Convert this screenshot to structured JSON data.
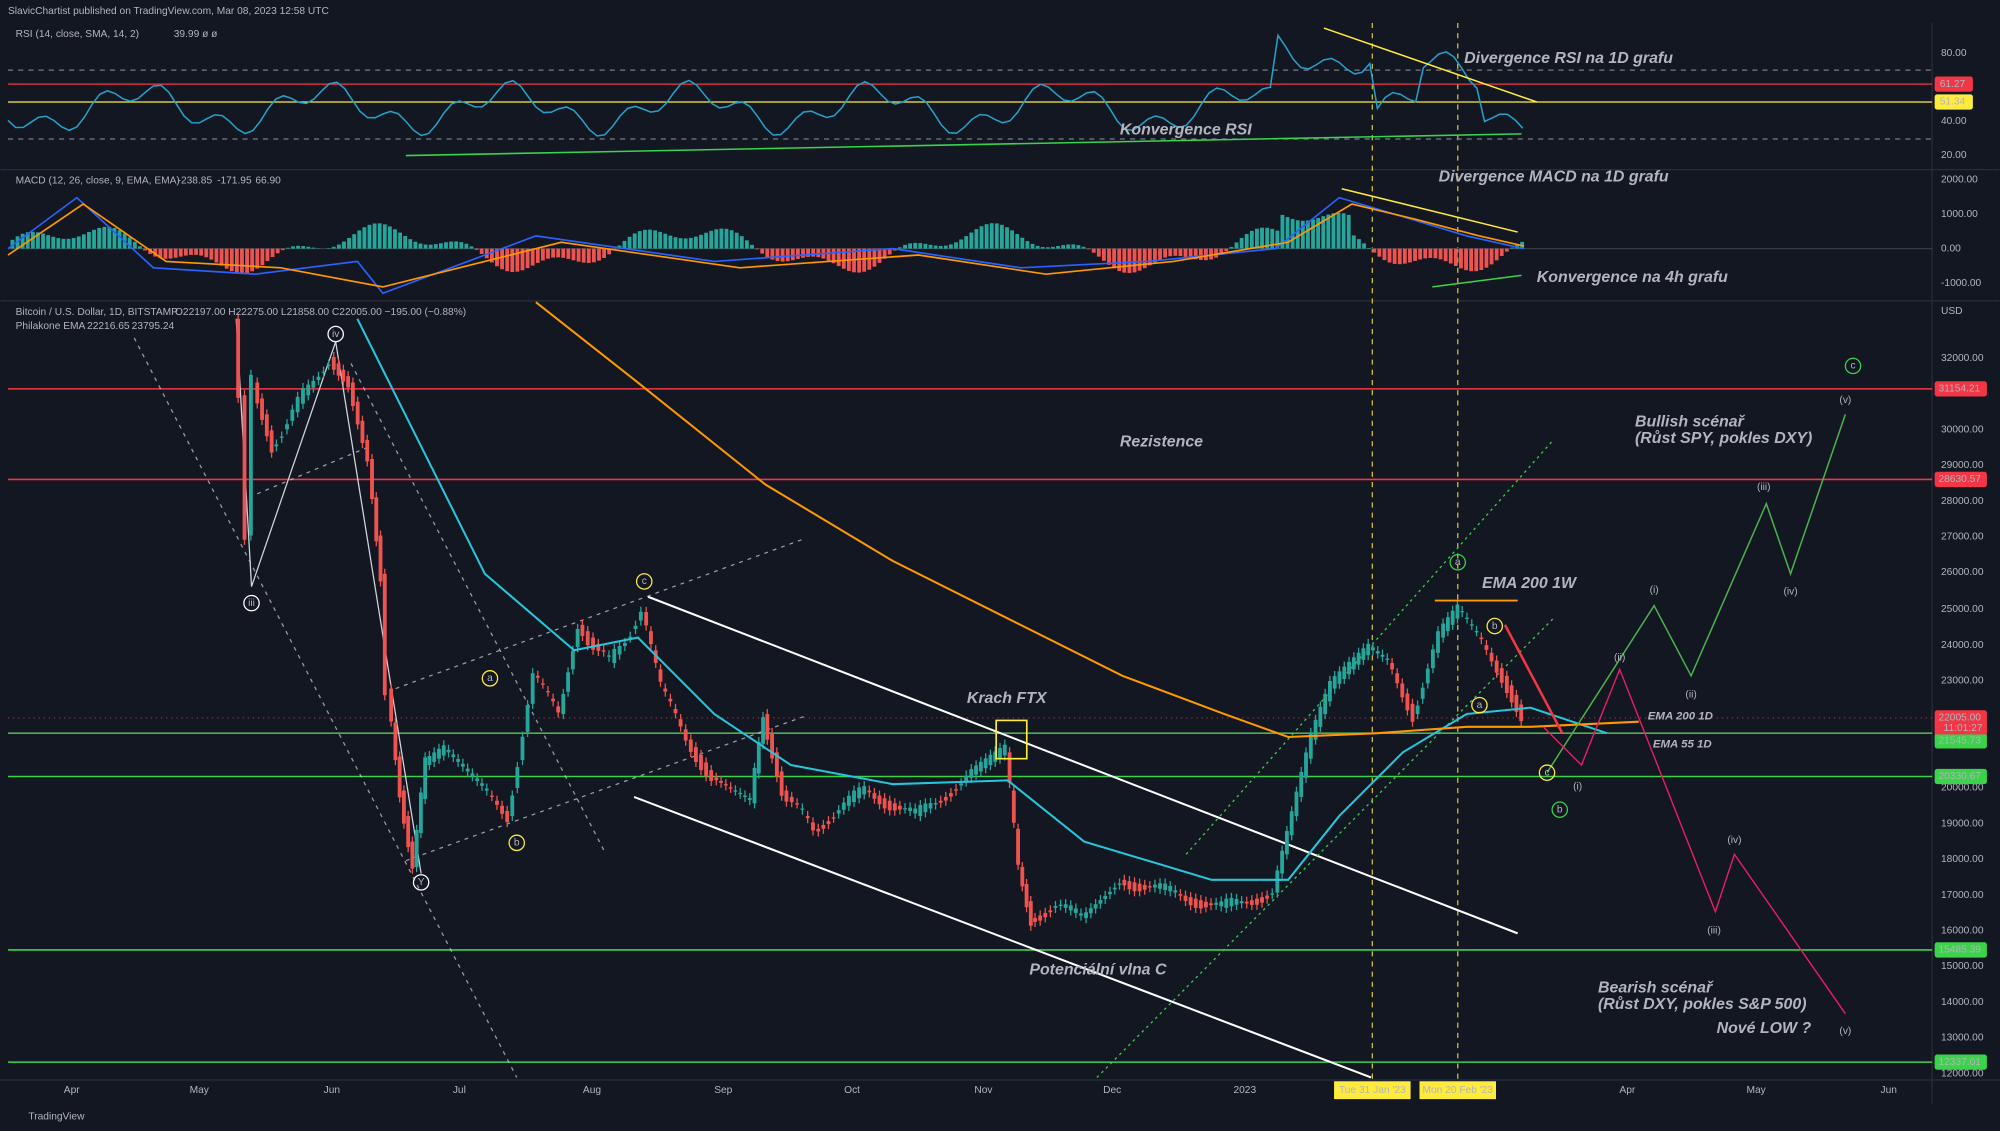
{
  "header": {
    "publisher": "SlavicChartist published on TradingView.com, Mar 08, 2023 12:58 UTC"
  },
  "rsi_pane": {
    "legend": "RSI (14, close, SMA, 14, 2)",
    "legend_values": "39.99 ø ø",
    "axis": [
      "80.00",
      "40.00",
      "20.00"
    ],
    "badges": [
      "61.27",
      "51.34"
    ]
  },
  "macd_pane": {
    "legend": "MACD (12, 26, close, 9, EMA, EMA)",
    "legend_values": [
      "-238.85",
      "-171.95",
      "66.90"
    ],
    "axis": [
      "2000.00",
      "1000.00",
      "0.00",
      "-1000.00"
    ]
  },
  "price_pane": {
    "legend": "Bitcoin / U.S. Dollar, 1D, BITSTAMP",
    "ohlc": "O22197.00 H22275.00 L21858.00 C22005.00 −195.00 (−0.88%)",
    "ema_legend": "Philakone EMA",
    "ema_values": [
      "22216.65",
      "23795.24"
    ],
    "currency": "USD",
    "axis": [
      "32000.00",
      "30000.00",
      "29000.00",
      "28000.00",
      "27000.00",
      "26000.00",
      "25000.00",
      "24000.00",
      "23000.00",
      "20000.00",
      "19000.00",
      "18000.00",
      "17000.00",
      "16000.00",
      "15000.00",
      "14000.00",
      "13000.00",
      "12000.00"
    ],
    "badges": [
      "31154.21",
      "28630.57",
      "22005.00",
      "21545.73",
      "20330.67",
      "15485.39",
      "12337.01"
    ],
    "countdown": "11:01:27"
  },
  "time_axis": {
    "labels": [
      "Apr",
      "May",
      "Jun",
      "Jul",
      "Aug",
      "Sep",
      "Oct",
      "Nov",
      "Dec",
      "2023",
      "Apr",
      "May",
      "Jun"
    ],
    "markers": [
      "Tue 31 Jan '23",
      "Mon 20 Feb '23"
    ]
  },
  "annotations": [
    "Divergence RSI na 1D grafu",
    "Konvergence RSI",
    "Divergence MACD na 1D grafu",
    "Konvergence na 4h grafu",
    "Rezistence",
    "Bullish scénař",
    "(Růst SPY, pokles DXY)",
    "EMA 200 1W",
    "Krach FTX",
    "EMA 200 1D",
    "EMA 55 1D",
    "Potenciální vlna C",
    "Bearish scénař",
    "(Růst DXY, pokles S&P 500)",
    "Nové LOW ?"
  ],
  "wave_labels": [
    "iv",
    "iii",
    "Y",
    "c",
    "a",
    "b",
    "c",
    "a",
    "b",
    "a",
    "c",
    "b",
    "(v)",
    "(iii)",
    "(iv)",
    "(i)",
    "(ii)",
    "(ii)",
    "(i)",
    "(iv)",
    "(iii)",
    "(v)"
  ],
  "footer": {
    "brand": "TradingView"
  }
}
